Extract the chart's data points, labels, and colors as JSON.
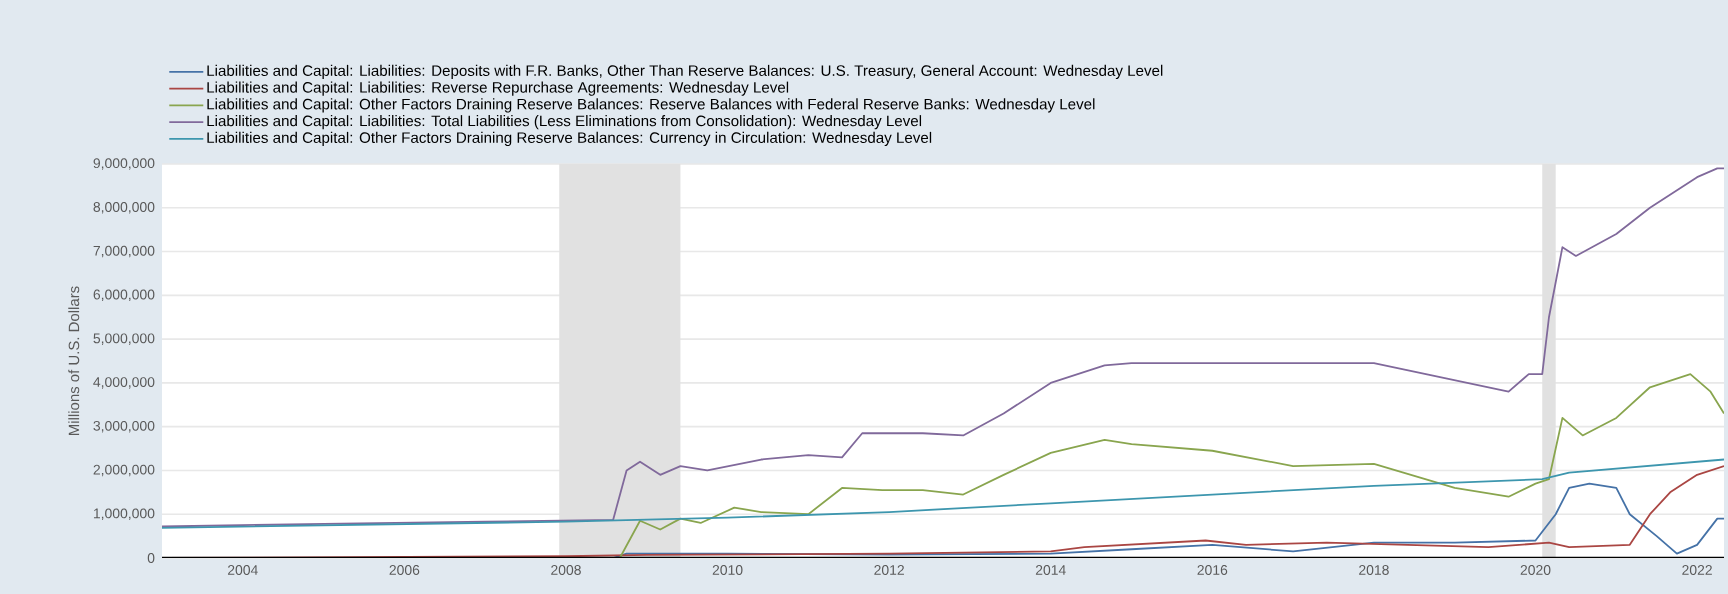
{
  "chart_data": {
    "type": "line",
    "ylabel": "Millions of U.S. Dollars",
    "xlim": [
      "2003-01",
      "2022-05"
    ],
    "ylim": [
      0,
      9000000
    ],
    "xticks": [
      "2004",
      "2006",
      "2008",
      "2010",
      "2012",
      "2014",
      "2016",
      "2018",
      "2020",
      "2022"
    ],
    "yticks": [
      0,
      {
        "value": 1000000,
        "label": "1,000,000"
      },
      {
        "value": 2000000,
        "label": "2,000,000"
      },
      {
        "value": 3000000,
        "label": "3,000,000"
      },
      {
        "value": 4000000,
        "label": "4,000,000"
      },
      {
        "value": 5000000,
        "label": "5,000,000"
      },
      {
        "value": 6000000,
        "label": "6,000,000"
      },
      {
        "value": 7000000,
        "label": "7,000,000"
      },
      {
        "value": 8000000,
        "label": "8,000,000"
      },
      {
        "value": 9000000,
        "label": "9,000,000"
      }
    ],
    "grid": "y",
    "legend": "top",
    "marker": "none",
    "line_style": "solid",
    "bands": [
      {
        "axis": "x",
        "from": "2007-12",
        "to": "2009-06",
        "color": "#e1e1e1"
      },
      {
        "axis": "x",
        "from": "2020-02",
        "to": "2020-04",
        "color": "#e1e1e1"
      }
    ],
    "series": [
      {
        "name": "Liabilities and Capital: Liabilities: Deposits with F.R. Banks, Other Than Reserve Balances: U.S. Treasury, General Account: Wednesday Level",
        "color": "#4572a7",
        "x": [
          "2003-01",
          "2008-08",
          "2008-10",
          "2010-01",
          "2012-01",
          "2014-01",
          "2015-01",
          "2016-01",
          "2017-01",
          "2018-01",
          "2019-01",
          "2020-01",
          "2020-04",
          "2020-06",
          "2020-09",
          "2021-01",
          "2021-03",
          "2021-07",
          "2021-10",
          "2022-01",
          "2022-04",
          "2022-05"
        ],
        "values": [
          0,
          0,
          100000,
          100000,
          80000,
          100000,
          200000,
          300000,
          150000,
          350000,
          350000,
          400000,
          1000000,
          1600000,
          1700000,
          1600000,
          1000000,
          500000,
          100000,
          300000,
          900000,
          900000
        ]
      },
      {
        "name": "Liabilities and Capital: Liabilities: Reverse Repurchase Agreements: Wednesday Level",
        "color": "#aa4643",
        "x": [
          "2003-01",
          "2008-01",
          "2009-01",
          "2012-01",
          "2014-01",
          "2014-06",
          "2015-12",
          "2016-06",
          "2017-06",
          "2018-06",
          "2019-06",
          "2020-03",
          "2020-06",
          "2021-03",
          "2021-06",
          "2021-09",
          "2022-01",
          "2022-05"
        ],
        "values": [
          0,
          40000,
          70000,
          100000,
          150000,
          250000,
          400000,
          300000,
          350000,
          300000,
          250000,
          350000,
          250000,
          300000,
          1000000,
          1500000,
          1900000,
          2100000
        ]
      },
      {
        "name": "Liabilities and Capital: Other Factors Draining Reserve Balances: Reserve Balances with Federal Reserve Banks: Wednesday Level",
        "color": "#89a54e",
        "x": [
          "2003-01",
          "2008-09",
          "2008-12",
          "2009-03",
          "2009-06",
          "2009-09",
          "2010-02",
          "2010-06",
          "2011-01",
          "2011-06",
          "2011-12",
          "2012-06",
          "2012-12",
          "2013-06",
          "2014-01",
          "2014-09",
          "2015-01",
          "2016-01",
          "2017-01",
          "2018-01",
          "2019-01",
          "2019-09",
          "2020-01",
          "2020-03",
          "2020-05",
          "2020-08",
          "2021-01",
          "2021-06",
          "2021-12",
          "2022-03",
          "2022-05"
        ],
        "values": [
          0,
          0,
          850000,
          650000,
          900000,
          800000,
          1150000,
          1050000,
          1000000,
          1600000,
          1550000,
          1550000,
          1450000,
          1900000,
          2400000,
          2700000,
          2600000,
          2450000,
          2100000,
          2150000,
          1600000,
          1400000,
          1700000,
          1800000,
          3200000,
          2800000,
          3200000,
          3900000,
          4200000,
          3800000,
          3300000
        ]
      },
      {
        "name": "Liabilities and Capital: Liabilities: Total Liabilities (Less Eliminations from Consolidation): Wednesday Level",
        "color": "#80699b",
        "x": [
          "2003-01",
          "2005-01",
          "2007-01",
          "2008-08",
          "2008-10",
          "2008-12",
          "2009-03",
          "2009-06",
          "2009-10",
          "2010-06",
          "2011-01",
          "2011-06",
          "2011-09",
          "2012-06",
          "2012-12",
          "2013-06",
          "2014-01",
          "2014-09",
          "2015-01",
          "2018-01",
          "2019-09",
          "2019-12",
          "2020-02",
          "2020-03",
          "2020-05",
          "2020-07",
          "2021-01",
          "2021-06",
          "2022-01",
          "2022-04",
          "2022-05"
        ],
        "values": [
          720000,
          780000,
          830000,
          870000,
          2000000,
          2200000,
          1900000,
          2100000,
          2000000,
          2250000,
          2350000,
          2300000,
          2850000,
          2850000,
          2800000,
          3300000,
          4000000,
          4400000,
          4450000,
          4450000,
          3800000,
          4200000,
          4200000,
          5500000,
          7100000,
          6900000,
          7400000,
          8000000,
          8700000,
          8900000,
          8900000
        ]
      },
      {
        "name": "Liabilities and Capital: Other Factors Draining Reserve Balances: Currency in Circulation: Wednesday Level",
        "color": "#3d96ae",
        "x": [
          "2003-01",
          "2008-01",
          "2010-01",
          "2012-01",
          "2014-01",
          "2016-01",
          "2018-01",
          "2020-02",
          "2020-06",
          "2022-05"
        ],
        "values": [
          690000,
          830000,
          920000,
          1050000,
          1250000,
          1450000,
          1650000,
          1800000,
          1950000,
          2250000
        ]
      }
    ]
  }
}
